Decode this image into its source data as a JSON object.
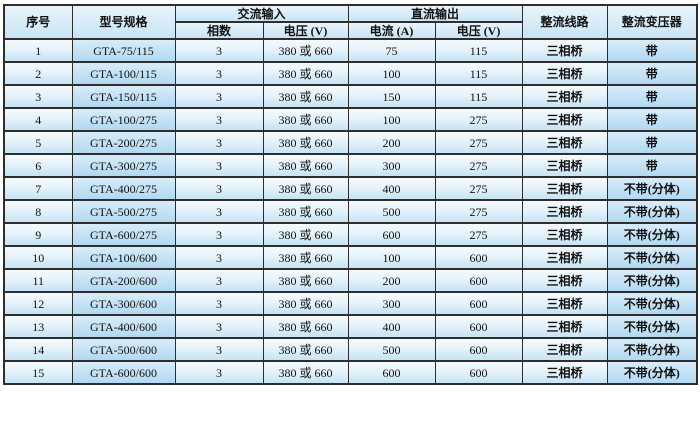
{
  "table": {
    "header": {
      "col_serial": "序号",
      "col_model": "型号规格",
      "group_ac_input": "交流输入",
      "col_phases": "相数",
      "col_ac_voltage": "电压 (V)",
      "group_dc_output": "直流输出",
      "col_dc_current": "电流 (A)",
      "col_dc_voltage": "电压 (V)",
      "col_rectifier_circuit": "整流线路",
      "col_rectifier_transformer": "整流变压器"
    },
    "rows": [
      {
        "serial": "1",
        "model": "GTA-75/115",
        "phases": "3",
        "ac_voltage": "380 或 660",
        "dc_current": "75",
        "dc_voltage": "115",
        "circuit": "三相桥",
        "transformer": "带"
      },
      {
        "serial": "2",
        "model": "GTA-100/115",
        "phases": "3",
        "ac_voltage": "380 或 660",
        "dc_current": "100",
        "dc_voltage": "115",
        "circuit": "三相桥",
        "transformer": "带"
      },
      {
        "serial": "3",
        "model": "GTA-150/115",
        "phases": "3",
        "ac_voltage": "380 或 660",
        "dc_current": "150",
        "dc_voltage": "115",
        "circuit": "三相桥",
        "transformer": "带"
      },
      {
        "serial": "4",
        "model": "GTA-100/275",
        "phases": "3",
        "ac_voltage": "380 或 660",
        "dc_current": "100",
        "dc_voltage": "275",
        "circuit": "三相桥",
        "transformer": "带"
      },
      {
        "serial": "5",
        "model": "GTA-200/275",
        "phases": "3",
        "ac_voltage": "380 或 660",
        "dc_current": "200",
        "dc_voltage": "275",
        "circuit": "三相桥",
        "transformer": "带"
      },
      {
        "serial": "6",
        "model": "GTA-300/275",
        "phases": "3",
        "ac_voltage": "380 或 660",
        "dc_current": "300",
        "dc_voltage": "275",
        "circuit": "三相桥",
        "transformer": "带"
      },
      {
        "serial": "7",
        "model": "GTA-400/275",
        "phases": "3",
        "ac_voltage": "380 或 660",
        "dc_current": "400",
        "dc_voltage": "275",
        "circuit": "三相桥",
        "transformer": "不带(分体)"
      },
      {
        "serial": "8",
        "model": "GTA-500/275",
        "phases": "3",
        "ac_voltage": "380 或 660",
        "dc_current": "500",
        "dc_voltage": "275",
        "circuit": "三相桥",
        "transformer": "不带(分体)"
      },
      {
        "serial": "9",
        "model": "GTA-600/275",
        "phases": "3",
        "ac_voltage": "380 或 660",
        "dc_current": "600",
        "dc_voltage": "275",
        "circuit": "三相桥",
        "transformer": "不带(分体)"
      },
      {
        "serial": "10",
        "model": "GTA-100/600",
        "phases": "3",
        "ac_voltage": "380 或 660",
        "dc_current": "100",
        "dc_voltage": "600",
        "circuit": "三相桥",
        "transformer": "不带(分体)"
      },
      {
        "serial": "11",
        "model": "GTA-200/600",
        "phases": "3",
        "ac_voltage": "380 或 660",
        "dc_current": "200",
        "dc_voltage": "600",
        "circuit": "三相桥",
        "transformer": "不带(分体)"
      },
      {
        "serial": "12",
        "model": "GTA-300/600",
        "phases": "3",
        "ac_voltage": "380 或 660",
        "dc_current": "300",
        "dc_voltage": "600",
        "circuit": "三相桥",
        "transformer": "不带(分体)"
      },
      {
        "serial": "13",
        "model": "GTA-400/600",
        "phases": "3",
        "ac_voltage": "380 或 660",
        "dc_current": "400",
        "dc_voltage": "600",
        "circuit": "三相桥",
        "transformer": "不带(分体)"
      },
      {
        "serial": "14",
        "model": "GTA-500/600",
        "phases": "3",
        "ac_voltage": "380 或 660",
        "dc_current": "500",
        "dc_voltage": "600",
        "circuit": "三相桥",
        "transformer": "不带(分体)"
      },
      {
        "serial": "15",
        "model": "GTA-600/600",
        "phases": "3",
        "ac_voltage": "380 或 660",
        "dc_current": "600",
        "dc_voltage": "600",
        "circuit": "三相桥",
        "transformer": "不带(分体)"
      }
    ]
  },
  "colors": {
    "border": "#2e2e2e",
    "header_top": "#e9f4fb",
    "header_bottom": "#c8e4f5",
    "cell_top": "#f4fafd",
    "cell_bottom": "#c6e3f5",
    "tint_top": "#d8ecfa",
    "tint_bottom": "#b1d9f1"
  }
}
